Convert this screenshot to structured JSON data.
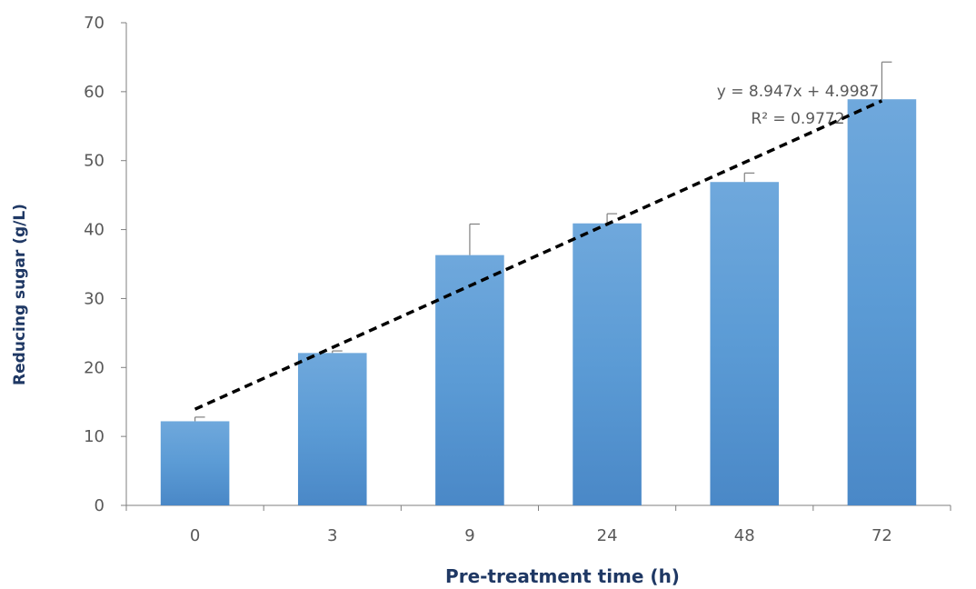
{
  "chart_data": {
    "type": "bar",
    "title": "",
    "xlabel": "Pre-treatment time (h)",
    "ylabel": "Reducing sugar (g/L)",
    "categories": [
      "0",
      "3",
      "9",
      "24",
      "48",
      "72"
    ],
    "values": [
      12.2,
      22.1,
      36.3,
      40.9,
      46.9,
      58.9
    ],
    "error_plus": [
      0.6,
      0.3,
      4.5,
      1.4,
      1.3,
      5.4
    ],
    "ylim": [
      0,
      70
    ],
    "yticks": [
      "0",
      "10",
      "20",
      "30",
      "40",
      "50",
      "60",
      "70"
    ],
    "grid": false,
    "legend": "none",
    "bar_color": "#5b9bd5",
    "trendline": {
      "type": "linear",
      "slope": 8.947,
      "intercept": 4.9987,
      "style": "dashed",
      "color": "#000000",
      "equation": "y = 8.947x + 4.9987",
      "r_squared": "R² = 0.9772"
    }
  }
}
